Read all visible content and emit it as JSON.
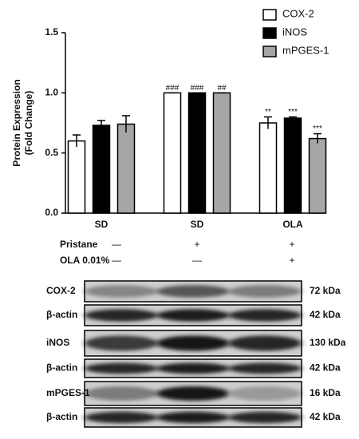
{
  "chart_data": {
    "type": "bar",
    "ylabel": [
      "Protein Expression",
      "(Fold Change)"
    ],
    "categories": [
      "SD",
      "SD",
      "OLA"
    ],
    "series": [
      {
        "name": "COX-2",
        "color": "#ffffff",
        "values": [
          0.6,
          1,
          0.75
        ],
        "errors": [
          0.05,
          0,
          0.05
        ],
        "annotations": [
          null,
          "###",
          "**"
        ]
      },
      {
        "name": "iNOS",
        "color": "#000000",
        "values": [
          0.73,
          1,
          0.79
        ],
        "errors": [
          0.04,
          0,
          0.01
        ],
        "annotations": [
          null,
          "###",
          "***"
        ]
      },
      {
        "name": "mPGES-1",
        "color": "#a6a6a6",
        "values": [
          0.74,
          1,
          0.62
        ],
        "errors": [
          0.07,
          0,
          0.04
        ],
        "annotations": [
          null,
          "##",
          "***"
        ]
      }
    ],
    "ylim": [
      0,
      1.5
    ],
    "yticks": [
      {
        "value": 0,
        "label": "0.0"
      },
      {
        "value": 0.5,
        "label": "0.5"
      },
      {
        "value": 1,
        "label": "1.0"
      },
      {
        "value": 1.5,
        "label": "1.5"
      }
    ],
    "legend": "upper right"
  },
  "treatments": [
    {
      "label": "Pristane",
      "marks": [
        "—",
        "+",
        "+"
      ]
    },
    {
      "label": "OLA 0.01%",
      "marks": [
        "—",
        "—",
        "+"
      ]
    }
  ],
  "blot": [
    {
      "protein": "COX-2",
      "size": "72 kDa"
    },
    {
      "protein": "β-actin",
      "size": "42 kDa"
    },
    {
      "protein": "iNOS",
      "size": "130 kDa"
    },
    {
      "protein": "β-actin",
      "size": "42 kDa"
    },
    {
      "protein": "mPGES-1",
      "size": "16 kDa"
    },
    {
      "protein": "β-actin",
      "size": "42 kDa"
    }
  ]
}
